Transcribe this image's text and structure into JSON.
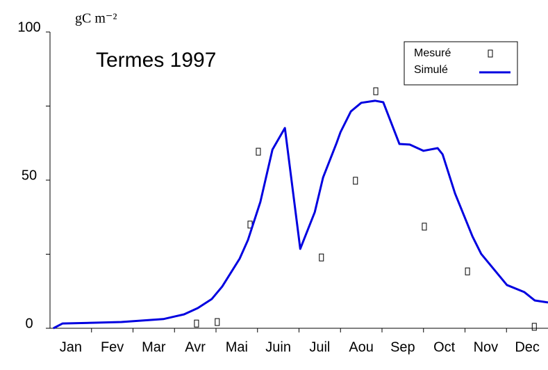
{
  "chart_data": {
    "type": "line",
    "title": "Termes 1997",
    "y_label": "gC m⁻²",
    "categories": [
      "Jan",
      "Fev",
      "Mar",
      "Avr",
      "Mai",
      "Juin",
      "Juil",
      "Aou",
      "Sep",
      "Oct",
      "Nov",
      "Dec"
    ],
    "xlim": [
      0,
      12
    ],
    "ylim": [
      0,
      100
    ],
    "yticks": [
      0,
      50,
      100
    ],
    "yminor_ticks": [
      25,
      75
    ],
    "legend": "upper right",
    "series": [
      {
        "name": "Mesuré",
        "type": "scatter",
        "color": "#000000",
        "x": [
          3.53,
          4.03,
          4.82,
          5.02,
          6.54,
          7.36,
          7.85,
          9.02,
          10.06,
          11.67
        ],
        "values": [
          1.6,
          2.1,
          35.0,
          59.6,
          23.9,
          49.8,
          80.0,
          34.3,
          19.2,
          0.5
        ]
      },
      {
        "name": "Simulé",
        "type": "line",
        "color": "#0000e0",
        "x": [
          0.08,
          0.3,
          1.72,
          2.73,
          3.23,
          3.56,
          3.9,
          4.15,
          4.57,
          4.77,
          5.07,
          5.36,
          5.66,
          6.03,
          6.38,
          6.58,
          6.91,
          7.0,
          7.25,
          7.5,
          7.83,
          8.03,
          8.42,
          8.67,
          9.0,
          9.34,
          9.46,
          9.76,
          10.18,
          10.39,
          11.01,
          11.43,
          11.68,
          12.0
        ],
        "values": [
          0,
          1.6,
          2.1,
          3.1,
          4.7,
          6.8,
          9.9,
          14.1,
          23.5,
          29.8,
          42.7,
          60.3,
          67.6,
          26.8,
          39.2,
          50.9,
          62.7,
          66.2,
          73.2,
          76.1,
          76.8,
          76.3,
          62.2,
          62.0,
          59.9,
          60.8,
          58.7,
          45.5,
          31.0,
          25.1,
          14.6,
          12.2,
          9.4,
          8.7
        ]
      }
    ]
  }
}
